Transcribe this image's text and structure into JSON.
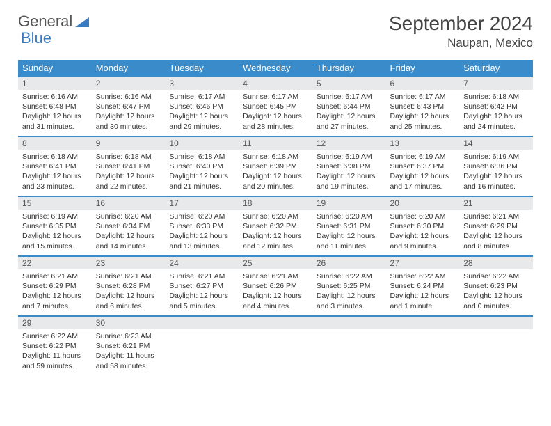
{
  "logo": {
    "word1": "General",
    "word2": "Blue"
  },
  "header": {
    "month": "September 2024",
    "location": "Naupan, Mexico"
  },
  "styling": {
    "header_bg": "#3a8bc9",
    "header_text": "#ffffff",
    "daynum_bg": "#e7e9eb",
    "border_color": "#3a8bc9",
    "body_font_size": 10.5,
    "title_font_size": 28
  },
  "weekdays": [
    "Sunday",
    "Monday",
    "Tuesday",
    "Wednesday",
    "Thursday",
    "Friday",
    "Saturday"
  ],
  "days": [
    {
      "n": "1",
      "sunrise": "Sunrise: 6:16 AM",
      "sunset": "Sunset: 6:48 PM",
      "daylight": "Daylight: 12 hours and 31 minutes."
    },
    {
      "n": "2",
      "sunrise": "Sunrise: 6:16 AM",
      "sunset": "Sunset: 6:47 PM",
      "daylight": "Daylight: 12 hours and 30 minutes."
    },
    {
      "n": "3",
      "sunrise": "Sunrise: 6:17 AM",
      "sunset": "Sunset: 6:46 PM",
      "daylight": "Daylight: 12 hours and 29 minutes."
    },
    {
      "n": "4",
      "sunrise": "Sunrise: 6:17 AM",
      "sunset": "Sunset: 6:45 PM",
      "daylight": "Daylight: 12 hours and 28 minutes."
    },
    {
      "n": "5",
      "sunrise": "Sunrise: 6:17 AM",
      "sunset": "Sunset: 6:44 PM",
      "daylight": "Daylight: 12 hours and 27 minutes."
    },
    {
      "n": "6",
      "sunrise": "Sunrise: 6:17 AM",
      "sunset": "Sunset: 6:43 PM",
      "daylight": "Daylight: 12 hours and 25 minutes."
    },
    {
      "n": "7",
      "sunrise": "Sunrise: 6:18 AM",
      "sunset": "Sunset: 6:42 PM",
      "daylight": "Daylight: 12 hours and 24 minutes."
    },
    {
      "n": "8",
      "sunrise": "Sunrise: 6:18 AM",
      "sunset": "Sunset: 6:41 PM",
      "daylight": "Daylight: 12 hours and 23 minutes."
    },
    {
      "n": "9",
      "sunrise": "Sunrise: 6:18 AM",
      "sunset": "Sunset: 6:41 PM",
      "daylight": "Daylight: 12 hours and 22 minutes."
    },
    {
      "n": "10",
      "sunrise": "Sunrise: 6:18 AM",
      "sunset": "Sunset: 6:40 PM",
      "daylight": "Daylight: 12 hours and 21 minutes."
    },
    {
      "n": "11",
      "sunrise": "Sunrise: 6:18 AM",
      "sunset": "Sunset: 6:39 PM",
      "daylight": "Daylight: 12 hours and 20 minutes."
    },
    {
      "n": "12",
      "sunrise": "Sunrise: 6:19 AM",
      "sunset": "Sunset: 6:38 PM",
      "daylight": "Daylight: 12 hours and 19 minutes."
    },
    {
      "n": "13",
      "sunrise": "Sunrise: 6:19 AM",
      "sunset": "Sunset: 6:37 PM",
      "daylight": "Daylight: 12 hours and 17 minutes."
    },
    {
      "n": "14",
      "sunrise": "Sunrise: 6:19 AM",
      "sunset": "Sunset: 6:36 PM",
      "daylight": "Daylight: 12 hours and 16 minutes."
    },
    {
      "n": "15",
      "sunrise": "Sunrise: 6:19 AM",
      "sunset": "Sunset: 6:35 PM",
      "daylight": "Daylight: 12 hours and 15 minutes."
    },
    {
      "n": "16",
      "sunrise": "Sunrise: 6:20 AM",
      "sunset": "Sunset: 6:34 PM",
      "daylight": "Daylight: 12 hours and 14 minutes."
    },
    {
      "n": "17",
      "sunrise": "Sunrise: 6:20 AM",
      "sunset": "Sunset: 6:33 PM",
      "daylight": "Daylight: 12 hours and 13 minutes."
    },
    {
      "n": "18",
      "sunrise": "Sunrise: 6:20 AM",
      "sunset": "Sunset: 6:32 PM",
      "daylight": "Daylight: 12 hours and 12 minutes."
    },
    {
      "n": "19",
      "sunrise": "Sunrise: 6:20 AM",
      "sunset": "Sunset: 6:31 PM",
      "daylight": "Daylight: 12 hours and 11 minutes."
    },
    {
      "n": "20",
      "sunrise": "Sunrise: 6:20 AM",
      "sunset": "Sunset: 6:30 PM",
      "daylight": "Daylight: 12 hours and 9 minutes."
    },
    {
      "n": "21",
      "sunrise": "Sunrise: 6:21 AM",
      "sunset": "Sunset: 6:29 PM",
      "daylight": "Daylight: 12 hours and 8 minutes."
    },
    {
      "n": "22",
      "sunrise": "Sunrise: 6:21 AM",
      "sunset": "Sunset: 6:29 PM",
      "daylight": "Daylight: 12 hours and 7 minutes."
    },
    {
      "n": "23",
      "sunrise": "Sunrise: 6:21 AM",
      "sunset": "Sunset: 6:28 PM",
      "daylight": "Daylight: 12 hours and 6 minutes."
    },
    {
      "n": "24",
      "sunrise": "Sunrise: 6:21 AM",
      "sunset": "Sunset: 6:27 PM",
      "daylight": "Daylight: 12 hours and 5 minutes."
    },
    {
      "n": "25",
      "sunrise": "Sunrise: 6:21 AM",
      "sunset": "Sunset: 6:26 PM",
      "daylight": "Daylight: 12 hours and 4 minutes."
    },
    {
      "n": "26",
      "sunrise": "Sunrise: 6:22 AM",
      "sunset": "Sunset: 6:25 PM",
      "daylight": "Daylight: 12 hours and 3 minutes."
    },
    {
      "n": "27",
      "sunrise": "Sunrise: 6:22 AM",
      "sunset": "Sunset: 6:24 PM",
      "daylight": "Daylight: 12 hours and 1 minute."
    },
    {
      "n": "28",
      "sunrise": "Sunrise: 6:22 AM",
      "sunset": "Sunset: 6:23 PM",
      "daylight": "Daylight: 12 hours and 0 minutes."
    },
    {
      "n": "29",
      "sunrise": "Sunrise: 6:22 AM",
      "sunset": "Sunset: 6:22 PM",
      "daylight": "Daylight: 11 hours and 59 minutes."
    },
    {
      "n": "30",
      "sunrise": "Sunrise: 6:23 AM",
      "sunset": "Sunset: 6:21 PM",
      "daylight": "Daylight: 11 hours and 58 minutes."
    }
  ]
}
